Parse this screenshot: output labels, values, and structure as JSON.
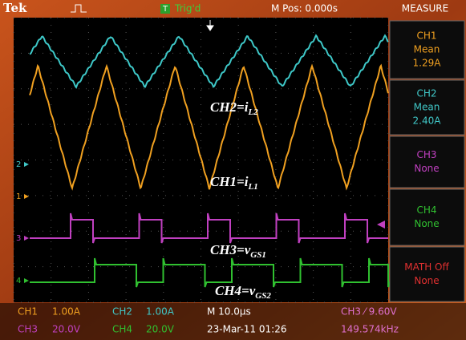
{
  "header": {
    "brand": "Tek",
    "trigger_box": "T",
    "status": "Trig'd",
    "position": "M Pos: 0.000s",
    "menu": "MEASURE"
  },
  "measurements": [
    {
      "label": "CH1",
      "stat": "Mean",
      "value": "1.29A"
    },
    {
      "label": "CH2",
      "stat": "Mean",
      "value": "2.40A"
    },
    {
      "label": "CH3",
      "value": "None"
    },
    {
      "label": "CH4",
      "value": "None"
    },
    {
      "label": "MATH Off",
      "value": "None"
    }
  ],
  "annotations": [
    {
      "main": "CH2=i",
      "sub": "L2"
    },
    {
      "main": "CH1=i",
      "sub": "L1"
    },
    {
      "main": "CH3=v",
      "sub": "GS1"
    },
    {
      "main": "CH4=v",
      "sub": "GS2"
    }
  ],
  "channel_markers": [
    "2",
    "1",
    "3",
    "4"
  ],
  "footer": [
    [
      "CH1",
      "1.00A",
      "CH2",
      "1.00A",
      "M 10.0µs",
      "CH3 ⁄ 9.60V"
    ],
    [
      "CH3",
      "20.0V",
      "CH4",
      "20.0V",
      "23-Mar-11 01:26",
      "149.574kHz"
    ]
  ]
}
